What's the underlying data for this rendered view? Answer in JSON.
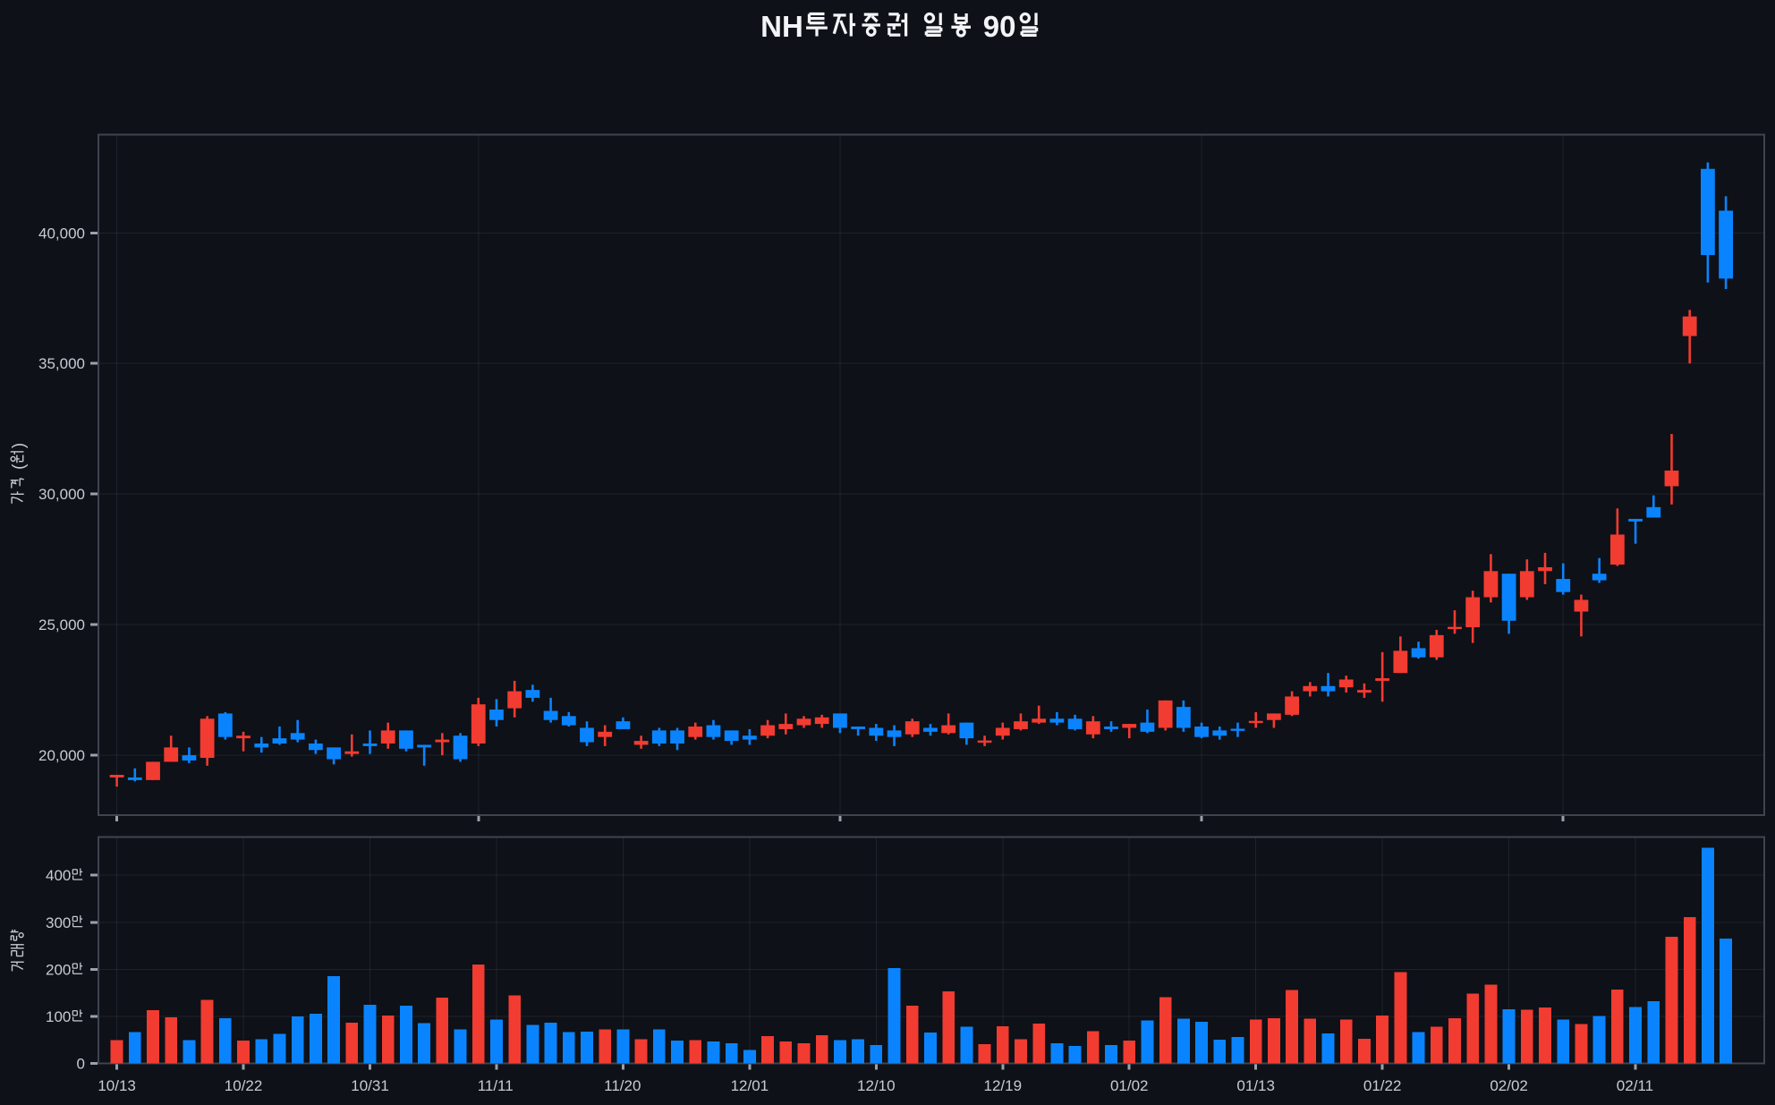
{
  "chart": {
    "title": "NH투자증권 일봉 90일",
    "price_axis_title": "가격 (원)",
    "volume_axis_title": "거래량",
    "colors": {
      "background": "#0e1117",
      "up_candle": "#f23b31",
      "down_candle": "#0a84fe",
      "grid": "rgba(150,158,170,0.13)",
      "frame": "#3f4450",
      "tick_mark": "#9ba1ac",
      "tick_label": "#c7cbd3",
      "title_text": "#f2f4f8"
    }
  },
  "chart_data": {
    "type": "candlestick_with_volume_bars",
    "title": "NH투자증권 일봉 90일",
    "convention": "korean: red = close above open (up), blue = close below open (down); volume bar color matches candle",
    "price_axis": {
      "label": "가격 (원)",
      "ticks": [
        20000,
        25000,
        30000,
        35000,
        40000
      ],
      "tick_labels": [
        "20,000",
        "25,000",
        "30,000",
        "35,000",
        "40,000"
      ],
      "range": [
        17716,
        43767
      ],
      "grid_every_n_candles": 20
    },
    "volume_axis": {
      "label": "거래량",
      "ticks": [
        0,
        1000000,
        2000000,
        3000000,
        4000000
      ],
      "tick_labels": [
        "0",
        "100만",
        "200만",
        "300만",
        "400만"
      ],
      "range": [
        0,
        4810000
      ],
      "grid_every_n_candles": 7
    },
    "x_axis": {
      "tick_label_indices": [
        0,
        7,
        14,
        21,
        28,
        35,
        42,
        49,
        56,
        63,
        70,
        77,
        84
      ],
      "tick_labels": [
        "10/13",
        "10/22",
        "10/31",
        "11/11",
        "11/20",
        "12/01",
        "12/10",
        "12/19",
        "01/02",
        "01/13",
        "01/22",
        "02/02",
        "02/11"
      ]
    },
    "dates": [
      "10/13",
      "10/14",
      "10/15",
      "10/16",
      "10/17",
      "10/20",
      "10/21",
      "10/22",
      "10/23",
      "10/24",
      "10/27",
      "10/28",
      "10/29",
      "10/30",
      "10/31",
      "11/03",
      "11/04",
      "11/05",
      "11/06",
      "11/07",
      "11/10",
      "11/11",
      "11/12",
      "11/13",
      "11/14",
      "11/17",
      "11/18",
      "11/19",
      "11/20",
      "11/21",
      "11/24",
      "11/25",
      "11/26",
      "11/27",
      "11/28",
      "12/01",
      "12/02",
      "12/03",
      "12/04",
      "12/05",
      "12/08",
      "12/09",
      "12/10",
      "12/11",
      "12/12",
      "12/15",
      "12/16",
      "12/17",
      "12/18",
      "12/19",
      "12/22",
      "12/23",
      "12/24",
      "12/26",
      "12/29",
      "12/30",
      "01/02",
      "01/05",
      "01/06",
      "01/07",
      "01/08",
      "01/09",
      "01/12",
      "01/13",
      "01/14",
      "01/15",
      "01/16",
      "01/19",
      "01/20",
      "01/21",
      "01/22",
      "01/23",
      "01/26",
      "01/27",
      "01/28",
      "01/29",
      "01/30",
      "02/02",
      "02/03",
      "02/04",
      "02/05",
      "02/06",
      "02/09",
      "02/10",
      "02/11",
      "02/12",
      "02/13",
      "02/16",
      "02/17",
      "02/18"
    ],
    "open": [
      19150,
      19150,
      19050,
      19750,
      20000,
      19900,
      21600,
      20650,
      20450,
      20650,
      20850,
      20450,
      20300,
      20050,
      20450,
      20450,
      20950,
      20400,
      20500,
      20750,
      20450,
      21750,
      21800,
      22500,
      21700,
      21500,
      21050,
      20700,
      21300,
      20400,
      20950,
      20950,
      20700,
      21150,
      20950,
      20750,
      20750,
      21000,
      21150,
      21200,
      21600,
      21100,
      21050,
      20950,
      20800,
      21050,
      20850,
      21250,
      20500,
      20750,
      21000,
      21250,
      21400,
      21400,
      20800,
      21100,
      21050,
      21250,
      21050,
      21850,
      21100,
      20950,
      21000,
      21250,
      21350,
      21550,
      22450,
      22650,
      22600,
      22400,
      22850,
      23150,
      24100,
      23750,
      24850,
      24900,
      26050,
      26950,
      26050,
      27050,
      26750,
      25500,
      26950,
      27300,
      29050,
      29500,
      30300,
      36050,
      42450,
      40850
    ],
    "high": [
      19250,
      19500,
      19750,
      20750,
      20300,
      21500,
      21650,
      20900,
      20700,
      21100,
      21350,
      20600,
      20300,
      20800,
      20950,
      21250,
      20950,
      20400,
      20850,
      20850,
      22200,
      22150,
      22850,
      22700,
      22200,
      21650,
      21300,
      21150,
      21450,
      20750,
      21050,
      21050,
      21250,
      21350,
      20950,
      21000,
      21350,
      21600,
      21500,
      21550,
      21600,
      21100,
      21200,
      21150,
      21400,
      21200,
      21600,
      21250,
      20750,
      21250,
      21600,
      21900,
      21650,
      21550,
      21500,
      21300,
      21200,
      21750,
      22100,
      22100,
      21250,
      21100,
      21250,
      21650,
      21600,
      22450,
      22800,
      23150,
      23050,
      22750,
      23950,
      24550,
      24350,
      24800,
      25550,
      26300,
      27700,
      26950,
      27500,
      27750,
      27350,
      26150,
      27550,
      29450,
      29050,
      29950,
      32300,
      37050,
      42700,
      41400
    ],
    "low": [
      18800,
      19000,
      19050,
      19750,
      19700,
      19600,
      20600,
      20150,
      20100,
      20400,
      20500,
      20050,
      19650,
      19950,
      20050,
      20250,
      20150,
      19600,
      20000,
      19750,
      20350,
      21100,
      21450,
      22050,
      21250,
      21100,
      20350,
      20350,
      21000,
      20250,
      20350,
      20200,
      20600,
      20600,
      20400,
      20400,
      20650,
      20800,
      21050,
      21050,
      20850,
      20750,
      20550,
      20350,
      20700,
      20750,
      20800,
      20400,
      20350,
      20600,
      20950,
      21200,
      21150,
      20950,
      20650,
      20900,
      20650,
      20850,
      20950,
      20900,
      20650,
      20600,
      20700,
      21050,
      21050,
      21500,
      22250,
      22250,
      22400,
      22200,
      22050,
      23150,
      23700,
      23650,
      24650,
      24300,
      25850,
      24650,
      25950,
      26550,
      26150,
      24550,
      26600,
      27250,
      28100,
      29100,
      29600,
      35000,
      38100,
      37850
    ],
    "close": [
      19250,
      19050,
      19750,
      20300,
      19800,
      21400,
      20700,
      20750,
      20300,
      20450,
      20600,
      20200,
      19850,
      20150,
      20350,
      20950,
      20250,
      20300,
      20600,
      19850,
      21950,
      21350,
      22450,
      22200,
      21350,
      21150,
      20500,
      20900,
      21000,
      20550,
      20450,
      20450,
      21100,
      20700,
      20550,
      20600,
      21150,
      21200,
      21400,
      21450,
      21050,
      21000,
      20750,
      20700,
      21300,
      20900,
      21150,
      20650,
      20550,
      21050,
      21300,
      21400,
      21250,
      21000,
      21300,
      21000,
      21200,
      20900,
      22100,
      21050,
      20700,
      20750,
      20950,
      21300,
      21600,
      22250,
      22650,
      22450,
      22900,
      22500,
      22950,
      24000,
      23750,
      24600,
      24900,
      26050,
      27050,
      25150,
      27050,
      27200,
      26250,
      25950,
      26700,
      28450,
      28950,
      29100,
      30900,
      36800,
      39150,
      38250
    ],
    "volume": [
      500000,
      670000,
      1130000,
      980000,
      500000,
      1350000,
      960000,
      490000,
      520000,
      630000,
      1000000,
      1060000,
      1860000,
      870000,
      1250000,
      1020000,
      1230000,
      860000,
      1400000,
      730000,
      2100000,
      930000,
      1450000,
      820000,
      870000,
      670000,
      680000,
      730000,
      730000,
      520000,
      730000,
      490000,
      500000,
      470000,
      430000,
      290000,
      580000,
      470000,
      430000,
      600000,
      500000,
      520000,
      390000,
      2030000,
      1230000,
      660000,
      1530000,
      780000,
      410000,
      790000,
      520000,
      850000,
      430000,
      370000,
      690000,
      390000,
      490000,
      920000,
      1410000,
      950000,
      890000,
      510000,
      560000,
      930000,
      960000,
      1560000,
      950000,
      640000,
      930000,
      530000,
      1020000,
      1940000,
      670000,
      780000,
      960000,
      1490000,
      1680000,
      1150000,
      1140000,
      1190000,
      930000,
      840000,
      1010000,
      1570000,
      1200000,
      1320000,
      2690000,
      3110000,
      4580000,
      2650000
    ]
  }
}
